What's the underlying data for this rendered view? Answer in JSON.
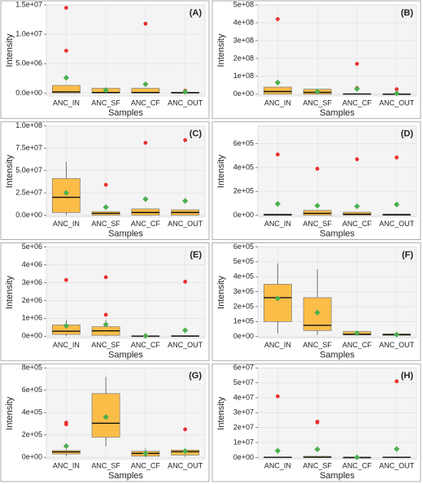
{
  "chart_data": [
    {
      "type": "box",
      "panel_label": "(A)",
      "y_label": "Intensity",
      "x_label": "Samples",
      "categories": [
        "ANC_IN",
        "ANC_SF",
        "ANC_CF",
        "ANC_OUT"
      ],
      "ylim": [
        -500000,
        15000000
      ],
      "yticks": [
        {
          "value": 0,
          "label": "0.0e+00"
        },
        {
          "value": 5000000,
          "label": "5.0e+06"
        },
        {
          "value": 10000000,
          "label": "1.0e+07"
        },
        {
          "value": 15000000,
          "label": "1.5e+07"
        }
      ],
      "box_color": "#fbbd48",
      "mean_color": "#4caf50",
      "outlier_color": "#e8312f",
      "grid": true,
      "boxes": [
        {
          "whislo": 0,
          "q1": 0,
          "med": 200000,
          "q3": 1300000,
          "whishi": 1300000,
          "mean": 2600000,
          "outliers": [
            7200000,
            14500000
          ]
        },
        {
          "whislo": 0,
          "q1": 0,
          "med": 100000,
          "q3": 800000,
          "whishi": 800000,
          "mean": 500000,
          "outliers": []
        },
        {
          "whislo": 0,
          "q1": 0,
          "med": 100000,
          "q3": 800000,
          "whishi": 800000,
          "mean": 1500000,
          "outliers": [
            11800000
          ]
        },
        {
          "whislo": 0,
          "q1": 0,
          "med": 50000,
          "q3": 150000,
          "whishi": 150000,
          "mean": 200000,
          "outliers": [
            400000
          ]
        }
      ]
    },
    {
      "type": "box",
      "panel_label": "(B)",
      "y_label": "Intensity",
      "x_label": "Samples",
      "categories": [
        "ANC_IN",
        "ANC_SF",
        "ANC_CF",
        "ANC_OUT"
      ],
      "ylim": [
        -10000000,
        500000000
      ],
      "yticks": [
        {
          "value": 0,
          "label": "0e+00"
        },
        {
          "value": 100000000,
          "label": "1e+08"
        },
        {
          "value": 200000000,
          "label": "2e+08"
        },
        {
          "value": 300000000,
          "label": "3e+08"
        },
        {
          "value": 400000000,
          "label": "4e+08"
        },
        {
          "value": 500000000,
          "label": "5e+08"
        }
      ],
      "box_color": "#fbbd48",
      "mean_color": "#4caf50",
      "outlier_color": "#e8312f",
      "grid": true,
      "boxes": [
        {
          "whislo": 0,
          "q1": 0,
          "med": 15000000,
          "q3": 40000000,
          "whishi": 40000000,
          "mean": 65000000,
          "outliers": [
            420000000
          ]
        },
        {
          "whislo": 0,
          "q1": 0,
          "med": 10000000,
          "q3": 28000000,
          "whishi": 28000000,
          "mean": 15000000,
          "outliers": []
        },
        {
          "whislo": 0,
          "q1": 0,
          "med": 1000000,
          "q3": 3000000,
          "whishi": 3000000,
          "mean": 30000000,
          "outliers": [
            35000000,
            170000000
          ]
        },
        {
          "whislo": 0,
          "q1": 0,
          "med": 500000,
          "q3": 1000000,
          "whishi": 1000000,
          "mean": 5000000,
          "outliers": [
            28000000
          ]
        }
      ]
    },
    {
      "type": "box",
      "panel_label": "(C)",
      "y_label": "Intensity",
      "x_label": "Samples",
      "categories": [
        "ANC_IN",
        "ANC_SF",
        "ANC_CF",
        "ANC_OUT"
      ],
      "ylim": [
        -2000000,
        100000000
      ],
      "yticks": [
        {
          "value": 0,
          "label": "0.0e+00"
        },
        {
          "value": 25000000,
          "label": "2.5e+07"
        },
        {
          "value": 50000000,
          "label": "5.0e+07"
        },
        {
          "value": 75000000,
          "label": "7.5e+07"
        },
        {
          "value": 100000000,
          "label": "1.0e+08"
        }
      ],
      "box_color": "#fbbd48",
      "mean_color": "#4caf50",
      "outlier_color": "#e8312f",
      "grid": true,
      "boxes": [
        {
          "whislo": 0,
          "q1": 3000000,
          "med": 20000000,
          "q3": 41000000,
          "whishi": 60000000,
          "mean": 25000000,
          "outliers": []
        },
        {
          "whislo": 0,
          "q1": 0,
          "med": 2000000,
          "q3": 4000000,
          "whishi": 4000000,
          "mean": 9000000,
          "outliers": [
            34000000
          ]
        },
        {
          "whislo": 0,
          "q1": 0,
          "med": 3000000,
          "q3": 7000000,
          "whishi": 7000000,
          "mean": 18000000,
          "outliers": [
            81000000
          ]
        },
        {
          "whislo": 0,
          "q1": 0,
          "med": 3000000,
          "q3": 6000000,
          "whishi": 6000000,
          "mean": 16000000,
          "outliers": [
            84000000
          ]
        }
      ]
    },
    {
      "type": "box",
      "panel_label": "(D)",
      "y_label": "Intensity",
      "x_label": "Samples",
      "categories": [
        "ANC_IN",
        "ANC_SF",
        "ANC_CF",
        "ANC_OUT"
      ],
      "ylim": [
        -15000,
        750000
      ],
      "yticks": [
        {
          "value": 0,
          "label": "0e+00"
        },
        {
          "value": 200000,
          "label": "2e+05"
        },
        {
          "value": 400000,
          "label": "4e+05"
        },
        {
          "value": 600000,
          "label": "6e+05"
        }
      ],
      "box_color": "#fbbd48",
      "mean_color": "#4caf50",
      "outlier_color": "#e8312f",
      "grid": true,
      "boxes": [
        {
          "whislo": 0,
          "q1": 0,
          "med": 3000,
          "q3": 10000,
          "whishi": 10000,
          "mean": 95000,
          "outliers": [
            510000
          ]
        },
        {
          "whislo": 0,
          "q1": 0,
          "med": 15000,
          "q3": 40000,
          "whishi": 40000,
          "mean": 80000,
          "outliers": [
            390000
          ]
        },
        {
          "whislo": 0,
          "q1": 0,
          "med": 8000,
          "q3": 25000,
          "whishi": 25000,
          "mean": 75000,
          "outliers": [
            470000
          ]
        },
        {
          "whislo": 0,
          "q1": 0,
          "med": 3000,
          "q3": 10000,
          "whishi": 10000,
          "mean": 90000,
          "outliers": [
            485000
          ]
        }
      ]
    },
    {
      "type": "box",
      "panel_label": "(E)",
      "y_label": "Intensity",
      "x_label": "Samples",
      "categories": [
        "ANC_IN",
        "ANC_SF",
        "ANC_CF",
        "ANC_OUT"
      ],
      "ylim": [
        -100000,
        5000000
      ],
      "yticks": [
        {
          "value": 0,
          "label": "0e+00"
        },
        {
          "value": 1000000,
          "label": "1e+06"
        },
        {
          "value": 2000000,
          "label": "2e+06"
        },
        {
          "value": 3000000,
          "label": "3e+06"
        },
        {
          "value": 4000000,
          "label": "4e+06"
        },
        {
          "value": 5000000,
          "label": "5e+06"
        }
      ],
      "box_color": "#fbbd48",
      "mean_color": "#4caf50",
      "outlier_color": "#e8312f",
      "grid": true,
      "boxes": [
        {
          "whislo": 0,
          "q1": 100000,
          "med": 280000,
          "q3": 630000,
          "whishi": 900000,
          "mean": 580000,
          "outliers": [
            3150000
          ]
        },
        {
          "whislo": 0,
          "q1": 50000,
          "med": 300000,
          "q3": 530000,
          "whishi": 900000,
          "mean": 650000,
          "outliers": [
            1200000,
            3300000
          ]
        },
        {
          "whislo": 0,
          "q1": 0,
          "med": 5000,
          "q3": 10000,
          "whishi": 10000,
          "mean": 20000,
          "outliers": []
        },
        {
          "whislo": 0,
          "q1": 0,
          "med": 8000,
          "q3": 20000,
          "whishi": 20000,
          "mean": 330000,
          "outliers": [
            3050000
          ]
        }
      ]
    },
    {
      "type": "box",
      "panel_label": "(F)",
      "y_label": "Intensity",
      "x_label": "Samples",
      "categories": [
        "ANC_IN",
        "ANC_SF",
        "ANC_CF",
        "ANC_OUT"
      ],
      "ylim": [
        -10000,
        600000
      ],
      "yticks": [
        {
          "value": 0,
          "label": "0e+00"
        },
        {
          "value": 100000,
          "label": "1e+05"
        },
        {
          "value": 200000,
          "label": "2e+05"
        },
        {
          "value": 300000,
          "label": "3e+05"
        },
        {
          "value": 400000,
          "label": "4e+05"
        },
        {
          "value": 500000,
          "label": "5e+05"
        },
        {
          "value": 600000,
          "label": "6e+05"
        }
      ],
      "box_color": "#fbbd48",
      "mean_color": "#4caf50",
      "outlier_color": "#e8312f",
      "grid": true,
      "boxes": [
        {
          "whislo": 20000,
          "q1": 100000,
          "med": 260000,
          "q3": 350000,
          "whishi": 490000,
          "mean": 255000,
          "outliers": []
        },
        {
          "whislo": 10000,
          "q1": 40000,
          "med": 75000,
          "q3": 260000,
          "whishi": 450000,
          "mean": 160000,
          "outliers": []
        },
        {
          "whislo": 5000,
          "q1": 10000,
          "med": 15000,
          "q3": 33000,
          "whishi": 35000,
          "mean": 22000,
          "outliers": []
        },
        {
          "whislo": 5000,
          "q1": 8000,
          "med": 12000,
          "q3": 18000,
          "whishi": 18000,
          "mean": 13000,
          "outliers": []
        }
      ]
    },
    {
      "type": "box",
      "panel_label": "(G)",
      "y_label": "Intensity",
      "x_label": "Samples",
      "categories": [
        "ANC_IN",
        "ANC_SF",
        "ANC_CF",
        "ANC_OUT"
      ],
      "ylim": [
        -15000,
        800000
      ],
      "yticks": [
        {
          "value": 0,
          "label": "0e+00"
        },
        {
          "value": 200000,
          "label": "2e+05"
        },
        {
          "value": 400000,
          "label": "4e+05"
        },
        {
          "value": 600000,
          "label": "6e+05"
        },
        {
          "value": 800000,
          "label": "8e+05"
        }
      ],
      "box_color": "#fbbd48",
      "mean_color": "#4caf50",
      "outlier_color": "#e8312f",
      "grid": true,
      "boxes": [
        {
          "whislo": 10000,
          "q1": 30000,
          "med": 48000,
          "q3": 60000,
          "whishi": 70000,
          "mean": 100000,
          "outliers": [
            295000,
            310000
          ]
        },
        {
          "whislo": 100000,
          "q1": 180000,
          "med": 305000,
          "q3": 570000,
          "whishi": 720000,
          "mean": 360000,
          "outliers": []
        },
        {
          "whislo": 0,
          "q1": 10000,
          "med": 35000,
          "q3": 55000,
          "whishi": 80000,
          "mean": 35000,
          "outliers": []
        },
        {
          "whislo": 5000,
          "q1": 20000,
          "med": 50000,
          "q3": 65000,
          "whishi": 70000,
          "mean": 55000,
          "outliers": [
            250000
          ]
        }
      ]
    },
    {
      "type": "box",
      "panel_label": "(H)",
      "y_label": "Intensity",
      "x_label": "Samples",
      "categories": [
        "ANC_IN",
        "ANC_SF",
        "ANC_CF",
        "ANC_OUT"
      ],
      "ylim": [
        -1000000,
        60000000
      ],
      "yticks": [
        {
          "value": 0,
          "label": "0e+00"
        },
        {
          "value": 10000000,
          "label": "1e+07"
        },
        {
          "value": 20000000,
          "label": "2e+07"
        },
        {
          "value": 30000000,
          "label": "3e+07"
        },
        {
          "value": 40000000,
          "label": "4e+07"
        },
        {
          "value": 50000000,
          "label": "5e+07"
        },
        {
          "value": 60000000,
          "label": "6e+07"
        }
      ],
      "box_color": "#fbbd48",
      "mean_color": "#4caf50",
      "outlier_color": "#e8312f",
      "grid": true,
      "boxes": [
        {
          "whislo": 0,
          "q1": 0,
          "med": 100000,
          "q3": 300000,
          "whishi": 300000,
          "mean": 4500000,
          "outliers": [
            41000000
          ]
        },
        {
          "whislo": 0,
          "q1": 0,
          "med": 200000,
          "q3": 800000,
          "whishi": 800000,
          "mean": 5500000,
          "outliers": [
            23500000,
            24000000
          ]
        },
        {
          "whislo": 0,
          "q1": 0,
          "med": 20000,
          "q3": 50000,
          "whishi": 50000,
          "mean": 100000,
          "outliers": []
        },
        {
          "whislo": 0,
          "q1": 0,
          "med": 100000,
          "q3": 300000,
          "whishi": 300000,
          "mean": 5700000,
          "outliers": [
            51000000
          ]
        }
      ]
    }
  ]
}
